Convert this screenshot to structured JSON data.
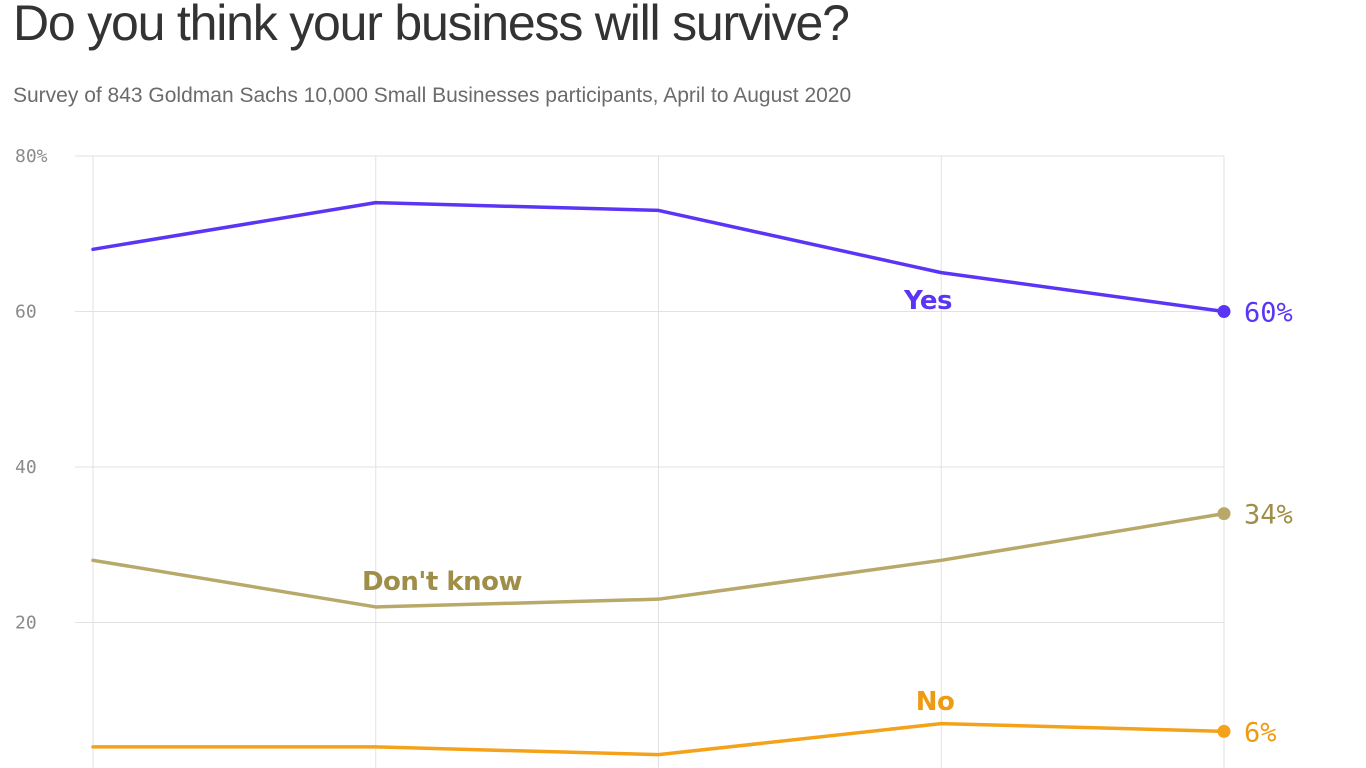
{
  "title": "Do you think your business will survive?",
  "subtitle": "Survey of 843 Goldman Sachs 10,000 Small Businesses participants, April to August 2020",
  "chart_data": {
    "type": "line",
    "title": "Do you think your business will survive?",
    "subtitle": "Survey of 843 Goldman Sachs 10,000 Small Businesses participants, April to August 2020",
    "x": [
      0,
      1,
      2,
      3,
      4
    ],
    "ylim": [
      0,
      80
    ],
    "y_ticks": [
      {
        "value": 80,
        "label": "80%"
      },
      {
        "value": 60,
        "label": "60"
      },
      {
        "value": 40,
        "label": "40"
      },
      {
        "value": 20,
        "label": "20"
      }
    ],
    "grid": true,
    "series": [
      {
        "name": "Yes",
        "color": "#5b35f5",
        "values": [
          68,
          74,
          73,
          65,
          60
        ],
        "end_label": "60%"
      },
      {
        "name": "Don't know",
        "color": "#b8a96a",
        "label_color": "#9e8e48",
        "values": [
          28,
          22,
          23,
          28,
          34
        ],
        "end_label": "34%"
      },
      {
        "name": "No",
        "color": "#f5a21b",
        "label_color": "#ee9a12",
        "values": [
          4,
          4,
          3,
          7,
          6
        ],
        "end_label": "6%"
      }
    ]
  }
}
